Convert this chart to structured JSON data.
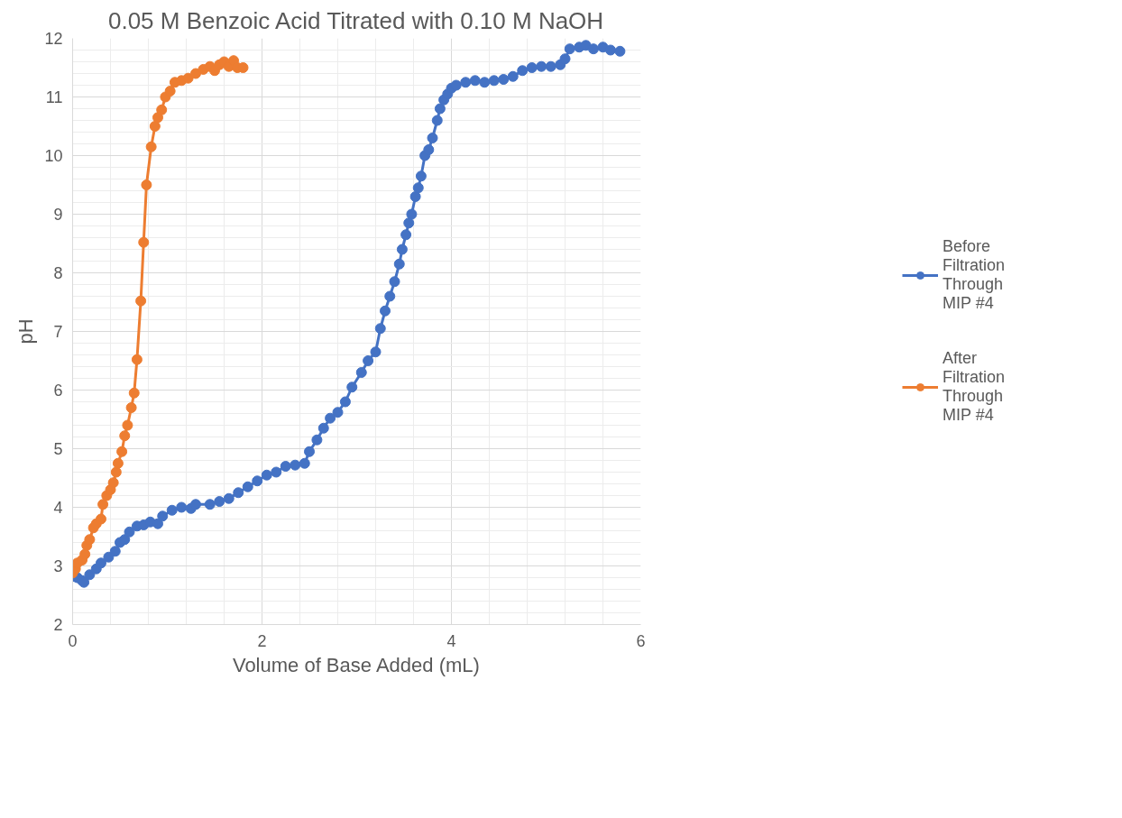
{
  "chart_data": {
    "type": "line",
    "title": "0.05 M Benzoic Acid Titrated with 0.10 M NaOH",
    "xlabel": "Volume of Base Added (mL)",
    "ylabel": "pH",
    "xlim": [
      0,
      6
    ],
    "xticks": [
      0,
      2,
      4,
      6
    ],
    "ylim": [
      2,
      12
    ],
    "yticks": [
      2,
      3,
      4,
      5,
      6,
      7,
      8,
      9,
      10,
      11,
      12
    ],
    "grid": true,
    "legend": "right",
    "marker": "circle",
    "line_style": "solid",
    "series": [
      {
        "name": "Before Filtration Through MIP #4",
        "color": "#4472c4",
        "x": [
          0,
          0.05,
          0.1,
          0.12,
          0.18,
          0.25,
          0.3,
          0.38,
          0.45,
          0.5,
          0.55,
          0.6,
          0.68,
          0.75,
          0.82,
          0.9,
          0.95,
          1.05,
          1.15,
          1.25,
          1.3,
          1.45,
          1.55,
          1.65,
          1.75,
          1.85,
          1.95,
          2.05,
          2.15,
          2.25,
          2.35,
          2.45,
          2.5,
          2.58,
          2.65,
          2.72,
          2.8,
          2.88,
          2.95,
          3.05,
          3.12,
          3.2,
          3.25,
          3.3,
          3.35,
          3.4,
          3.45,
          3.48,
          3.52,
          3.55,
          3.58,
          3.62,
          3.65,
          3.68,
          3.72,
          3.76,
          3.8,
          3.85,
          3.88,
          3.92,
          3.96,
          4.0,
          4.05,
          4.15,
          4.25,
          4.35,
          4.45,
          4.55,
          4.65,
          4.75,
          4.85,
          4.95,
          5.05,
          5.15,
          5.2,
          5.25,
          5.35,
          5.42,
          5.5,
          5.6,
          5.68,
          5.78
        ],
        "values": [
          2.82,
          2.8,
          2.75,
          2.72,
          2.85,
          2.95,
          3.05,
          3.15,
          3.25,
          3.4,
          3.45,
          3.58,
          3.68,
          3.7,
          3.75,
          3.72,
          3.85,
          3.95,
          4.0,
          3.98,
          4.05,
          4.05,
          4.1,
          4.15,
          4.25,
          4.35,
          4.45,
          4.55,
          4.6,
          4.7,
          4.72,
          4.75,
          4.95,
          5.15,
          5.35,
          5.52,
          5.62,
          5.8,
          6.05,
          6.3,
          6.5,
          6.65,
          7.05,
          7.35,
          7.6,
          7.85,
          8.15,
          8.4,
          8.65,
          8.85,
          9.0,
          9.3,
          9.45,
          9.65,
          10.0,
          10.1,
          10.3,
          10.6,
          10.8,
          10.95,
          11.05,
          11.15,
          11.2,
          11.25,
          11.28,
          11.25,
          11.28,
          11.3,
          11.35,
          11.45,
          11.5,
          11.52,
          11.52,
          11.55,
          11.65,
          11.82,
          11.85,
          11.88,
          11.82,
          11.85,
          11.8,
          11.78
        ]
      },
      {
        "name": "After Filtration Through MIP #4",
        "color": "#ed7d31",
        "x": [
          0,
          0.03,
          0.05,
          0.1,
          0.13,
          0.15,
          0.18,
          0.22,
          0.25,
          0.3,
          0.32,
          0.36,
          0.4,
          0.43,
          0.46,
          0.48,
          0.52,
          0.55,
          0.58,
          0.62,
          0.65,
          0.68,
          0.72,
          0.75,
          0.78,
          0.83,
          0.87,
          0.9,
          0.94,
          0.98,
          1.03,
          1.08,
          1.15,
          1.22,
          1.3,
          1.38,
          1.45,
          1.5,
          1.55,
          1.6,
          1.65,
          1.7,
          1.74,
          1.8
        ],
        "values": [
          2.88,
          2.95,
          3.05,
          3.1,
          3.2,
          3.35,
          3.45,
          3.65,
          3.72,
          3.8,
          4.05,
          4.2,
          4.3,
          4.42,
          4.6,
          4.75,
          4.95,
          5.22,
          5.4,
          5.7,
          5.95,
          6.52,
          7.52,
          8.52,
          9.5,
          10.15,
          10.5,
          10.65,
          10.78,
          11.0,
          11.1,
          11.25,
          11.28,
          11.32,
          11.4,
          11.47,
          11.52,
          11.45,
          11.55,
          11.6,
          11.52,
          11.62,
          11.5,
          11.5
        ]
      }
    ]
  }
}
